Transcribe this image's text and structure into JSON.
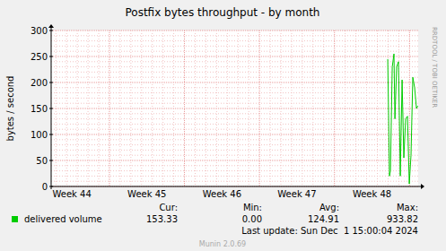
{
  "chart_data": {
    "type": "line",
    "title": "Postfix bytes throughput - by month",
    "y_label": "bytes / second",
    "watermark": "RRDTOOL / TOBI OETIKER",
    "x": [
      31.41,
      31.57,
      31.66,
      31.83,
      31.99,
      32.08,
      32.24,
      32.41,
      32.58,
      32.75,
      32.91,
      33.08,
      33.25,
      33.42,
      33.58,
      33.75,
      33.92,
      34.09,
      34.21
    ],
    "series": [
      {
        "name": "delivered volume",
        "color": "#00CC00",
        "values": [
          245,
          20,
          30,
          230,
          255,
          130,
          230,
          240,
          20,
          205,
          55,
          130,
          135,
          5,
          60,
          210,
          190,
          150,
          155
        ]
      }
    ],
    "xlim": [
      0,
      34.25
    ],
    "xticks": [
      {
        "value": 1.94,
        "label": "Week 44"
      },
      {
        "value": 8.94,
        "label": "Week 45"
      },
      {
        "value": 15.94,
        "label": "Week 46"
      },
      {
        "value": 22.94,
        "label": "Week 47"
      },
      {
        "value": 29.94,
        "label": "Week 48"
      }
    ],
    "ylim": [
      0,
      300
    ],
    "yticks": [
      0,
      50,
      100,
      150,
      200,
      250,
      300
    ],
    "grid": true,
    "stats_labels": [
      "Cur:",
      "Min:",
      "Avg:",
      "Max:"
    ],
    "stats_values": [
      "153.33",
      "0.00",
      "124.91",
      "933.82"
    ],
    "last_update": "Last update: Sun Dec  1 15:00:04 2024",
    "footer": "Munin 2.0.69"
  }
}
